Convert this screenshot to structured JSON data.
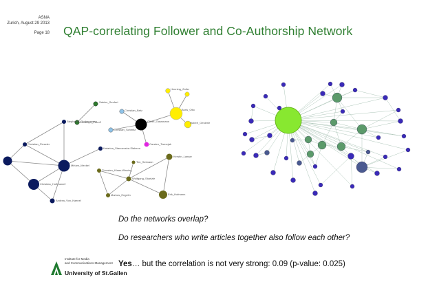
{
  "slide": {
    "meta": {
      "asna": "ASNA",
      "place_date": "Zurich, August 29 2013",
      "page": "Page 18"
    },
    "title": "QAP-correlating Follower and Co-Authorship Network",
    "question1": "Do the networks overlap?",
    "question2": "Do researchers who write articles together also follow each other?",
    "answer_bold": "Yes",
    "answer_rest": "… but the correlation is not very strong: 0.09 (p-value: 0.025)"
  },
  "logo": {
    "institute_line1": "Institute for Media",
    "institute_line2": "and Communications Management",
    "university": "University of St.Gallen"
  },
  "network_left": {
    "labels": [
      "Sabine_Seufert",
      "Christoph_Peter2",
      "Christian_Betz",
      "Christian_Schmitz",
      "Henning_Zoller",
      "Boris_Otto",
      "Oliver_Gassmann",
      "Hubert_Oesterle",
      "Carsten_Twerzjak",
      "Stephanie_Grubenmann",
      "Katarina_Stanoevska-Slabeva",
      "Christian_Fieseler",
      "Miriam_Meckel",
      "Christian_Hoffmann2",
      "Andrea_Von_Kaenel",
      "Tim_Seimann",
      "Thorsten_Klaas-Wissing",
      "Wolfgang_Stoelzle",
      "Kerstin_Lampe",
      "Erik_Hofmann",
      "Markus_Engelin"
    ],
    "colors": {
      "navy": "#0b1a5e",
      "yellow": "#ffee00",
      "olive": "#6b6b1c",
      "green": "#2d7a2d",
      "blue": "#5aa0d8",
      "magenta": "#e024e0",
      "black": "#000000"
    }
  },
  "network_right": {
    "colors": {
      "lime": "#88e830",
      "sage": "#5b9a6a",
      "violet": "#3a2ab8",
      "slate": "#4a5a90"
    }
  }
}
